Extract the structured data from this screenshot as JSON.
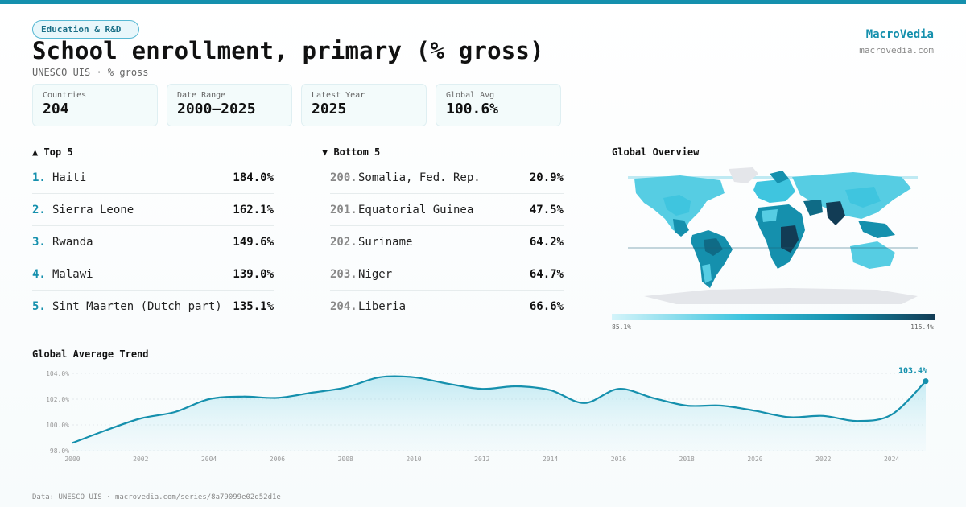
{
  "header": {
    "tag": "Education & R&D",
    "title": "School enrollment, primary (% gross)",
    "subtitle": "UNESCO UIS · % gross",
    "brand": "MacroVedia",
    "brand_url": "macrovedia.com"
  },
  "stats": [
    {
      "label": "Countries",
      "value": "204"
    },
    {
      "label": "Date Range",
      "value": "2000–2025"
    },
    {
      "label": "Latest Year",
      "value": "2025"
    },
    {
      "label": "Global Avg",
      "value": "100.6%"
    }
  ],
  "top5": {
    "title": "▲ Top 5",
    "items": [
      {
        "rank": "1.",
        "name": "Haiti",
        "value": "184.0%"
      },
      {
        "rank": "2.",
        "name": "Sierra Leone",
        "value": "162.1%"
      },
      {
        "rank": "3.",
        "name": "Rwanda",
        "value": "149.6%"
      },
      {
        "rank": "4.",
        "name": "Malawi",
        "value": "139.0%"
      },
      {
        "rank": "5.",
        "name": "Sint Maarten (Dutch part)",
        "value": "135.1%"
      }
    ]
  },
  "bottom5": {
    "title": "▼ Bottom 5",
    "items": [
      {
        "rank": "200.",
        "name": "Somalia, Fed. Rep.",
        "value": "20.9%"
      },
      {
        "rank": "201.",
        "name": "Equatorial Guinea",
        "value": "47.5%"
      },
      {
        "rank": "202.",
        "name": "Suriname",
        "value": "64.2%"
      },
      {
        "rank": "203.",
        "name": "Niger",
        "value": "64.7%"
      },
      {
        "rank": "204.",
        "name": "Liberia",
        "value": "66.6%"
      }
    ]
  },
  "map": {
    "title": "Global Overview",
    "legend_min": "85.1%",
    "legend_max": "115.4%",
    "colors": [
      "#d4f4fa",
      "#3fc5df",
      "#1590ad",
      "#123c55"
    ]
  },
  "trend_title": "Global Average Trend",
  "chart_data": {
    "type": "area",
    "x": [
      2000,
      2001,
      2002,
      2003,
      2004,
      2005,
      2006,
      2007,
      2008,
      2009,
      2010,
      2011,
      2012,
      2013,
      2014,
      2015,
      2016,
      2017,
      2018,
      2019,
      2020,
      2021,
      2022,
      2023,
      2024,
      2025
    ],
    "values": [
      98.6,
      99.6,
      100.5,
      101.0,
      102.0,
      102.2,
      102.1,
      102.5,
      102.9,
      103.7,
      103.7,
      103.2,
      102.8,
      103.0,
      102.7,
      101.7,
      102.8,
      102.1,
      101.5,
      101.5,
      101.1,
      100.6,
      100.7,
      100.3,
      100.8,
      103.4
    ],
    "yticks": [
      "98.0%",
      "100.0%",
      "102.0%",
      "104.0%"
    ],
    "ytick_values": [
      98,
      100,
      102,
      104
    ],
    "xticks": [
      "2000",
      "2002",
      "2004",
      "2006",
      "2008",
      "2010",
      "2012",
      "2014",
      "2016",
      "2018",
      "2020",
      "2022",
      "2024"
    ],
    "xtick_values": [
      2000,
      2002,
      2004,
      2006,
      2008,
      2010,
      2012,
      2014,
      2016,
      2018,
      2020,
      2022,
      2024
    ],
    "ylim": [
      98,
      104
    ],
    "xlim": [
      2000,
      2025
    ],
    "end_label": "103.4%",
    "line_color": "#1590ad",
    "grid": true
  },
  "footer": "Data: UNESCO UIS · macrovedia.com/series/8a79099e02d52d1e"
}
